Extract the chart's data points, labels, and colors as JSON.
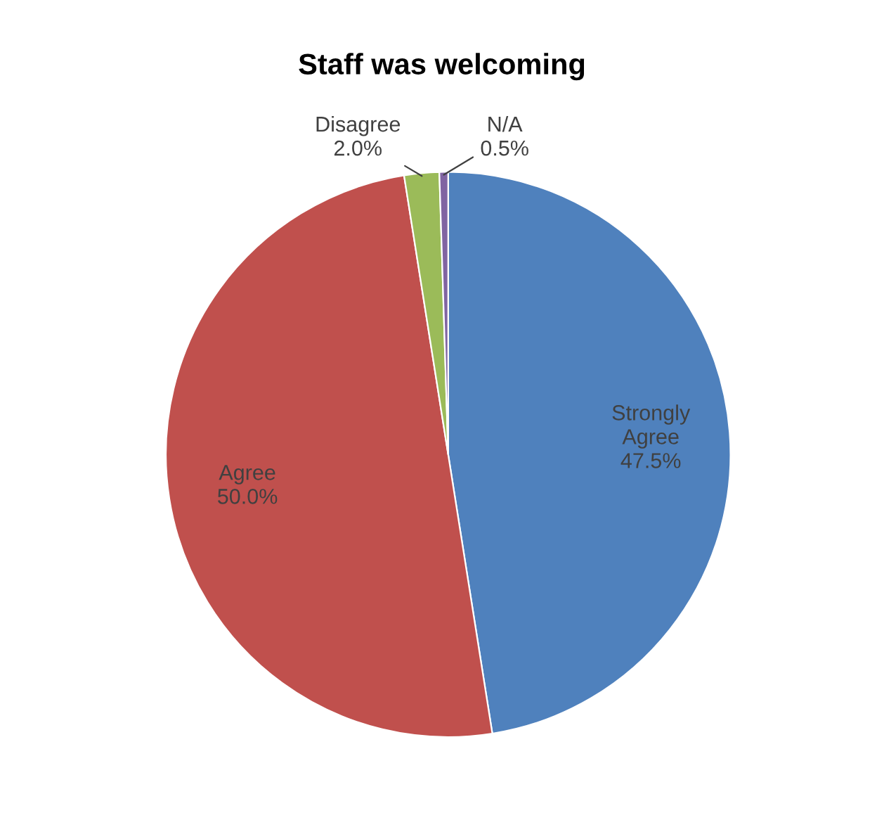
{
  "chart_data": {
    "type": "pie",
    "title": "Staff was welcoming",
    "categories": [
      "Strongly Agree",
      "Agree",
      "Disagree",
      "N/A"
    ],
    "values": [
      47.5,
      50.0,
      2.0,
      0.5
    ],
    "colors": [
      "#4f81bd",
      "#c0504d",
      "#9bbb59",
      "#8064a2"
    ],
    "value_labels": [
      "47.5%",
      "50.0%",
      "2.0%",
      "0.5%"
    ],
    "legend": false
  }
}
